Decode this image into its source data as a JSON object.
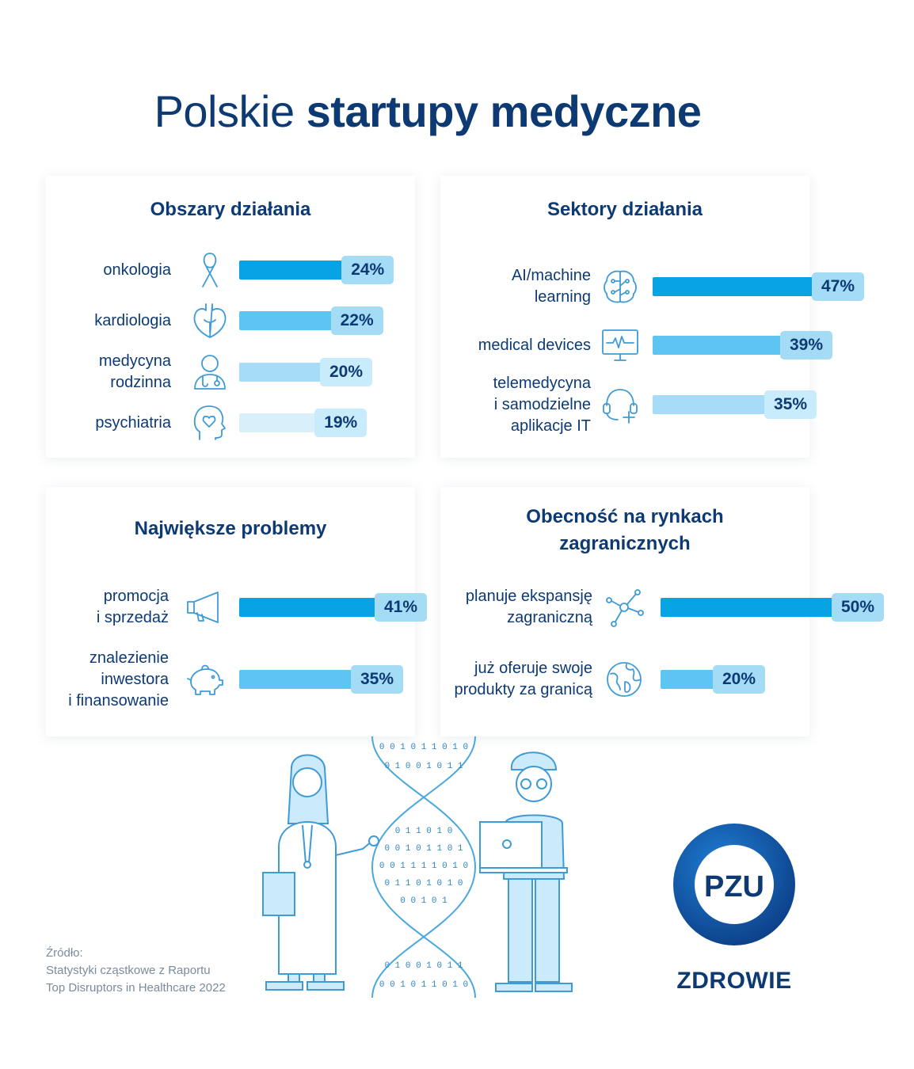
{
  "title": {
    "light": "Polskie",
    "bold": "startupy medyczne"
  },
  "colors": {
    "navy": "#0d3a73",
    "bar_strong": "#08a3e4",
    "bar_mid": "#5ec4f2",
    "bar_light": "#a6dcf8",
    "bar_faint": "#d9f0fb",
    "badge_strong": "#a4dcf6",
    "badge_light": "#c8ecfb"
  },
  "chart_data": [
    {
      "type": "bar",
      "title": "Obszary działania",
      "categories": [
        "onkologia",
        "kardiologia",
        "medycyna\nrodzinna",
        "psychiatria"
      ],
      "values": [
        24,
        22,
        20,
        19
      ],
      "value_labels": [
        "24%",
        "22%",
        "20%",
        "19%"
      ],
      "icons": [
        "cancer-ribbon-icon",
        "heart-organ-icon",
        "doctor-stethoscope-icon",
        "head-heart-icon"
      ]
    },
    {
      "type": "bar",
      "title": "Sektory działania",
      "categories": [
        "AI/machine\nlearning",
        "medical devices",
        "telemedycyna\ni samodzielne\naplikacje IT"
      ],
      "values": [
        47,
        39,
        35
      ],
      "value_labels": [
        "47%",
        "39%",
        "35%"
      ],
      "icons": [
        "brain-circuit-icon",
        "heart-monitor-icon",
        "headset-plus-icon"
      ]
    },
    {
      "type": "bar",
      "title": "Największe problemy",
      "categories": [
        "promocja\ni sprzedaż",
        "znalezienie\ninwestora\ni finansowanie"
      ],
      "values": [
        41,
        35
      ],
      "value_labels": [
        "41%",
        "35%"
      ],
      "icons": [
        "megaphone-icon",
        "piggy-bank-icon"
      ]
    },
    {
      "type": "bar",
      "title": "Obecność na rynkach\nzagranicznych",
      "categories": [
        "planuje ekspansję\nzagraniczną",
        "już oferuje swoje\nprodukty za granicą"
      ],
      "values": [
        50,
        20
      ],
      "value_labels": [
        "50%",
        "20%"
      ],
      "icons": [
        "network-nodes-icon",
        "globe-icon"
      ]
    }
  ],
  "source": {
    "heading": "Źródło:",
    "line1": "Statystyki cząstkowe z Raportu",
    "line2": "Top Disruptors in Healthcare 2022"
  },
  "dna_binary": [
    "0 0 1 0 1 1 0 1 0",
    "0 1 0 0 1 0 1 1",
    "0 1 1 0 1 0",
    "0 0 1 0 1 1 0 1",
    "0 0 1 1 1 1 0 1 0",
    "0 1 1 0 1 0 1 0",
    "0 0 1 0 1",
    "0 1 0 0 1 0 1 1",
    "0 0 1 0 1 1 0 1 0"
  ],
  "logo": {
    "mark": "PZU",
    "text": "ZDROWIE"
  }
}
